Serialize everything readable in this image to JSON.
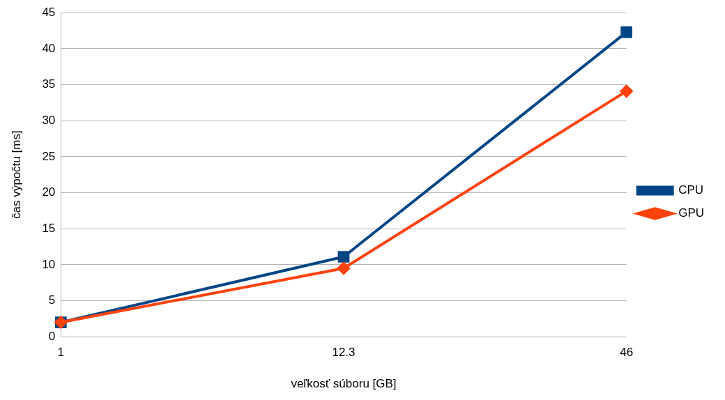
{
  "chart_data": {
    "type": "line",
    "xlabel": "veľkosť súboru [GB]",
    "ylabel": "čas výpočtu [ms]",
    "categories": [
      "1",
      "12.3",
      "46"
    ],
    "series": [
      {
        "name": "CPU",
        "color": "#004586",
        "marker": "square",
        "values": [
          2.0,
          11.1,
          42.3
        ]
      },
      {
        "name": "GPU",
        "color": "#ff420e",
        "marker": "diamond",
        "values": [
          2.0,
          9.5,
          34.1
        ]
      }
    ],
    "ylim": [
      0,
      45
    ],
    "yticks": [
      0,
      5,
      10,
      15,
      20,
      25,
      30,
      35,
      40,
      45
    ],
    "grid": "y",
    "legend": "right"
  }
}
